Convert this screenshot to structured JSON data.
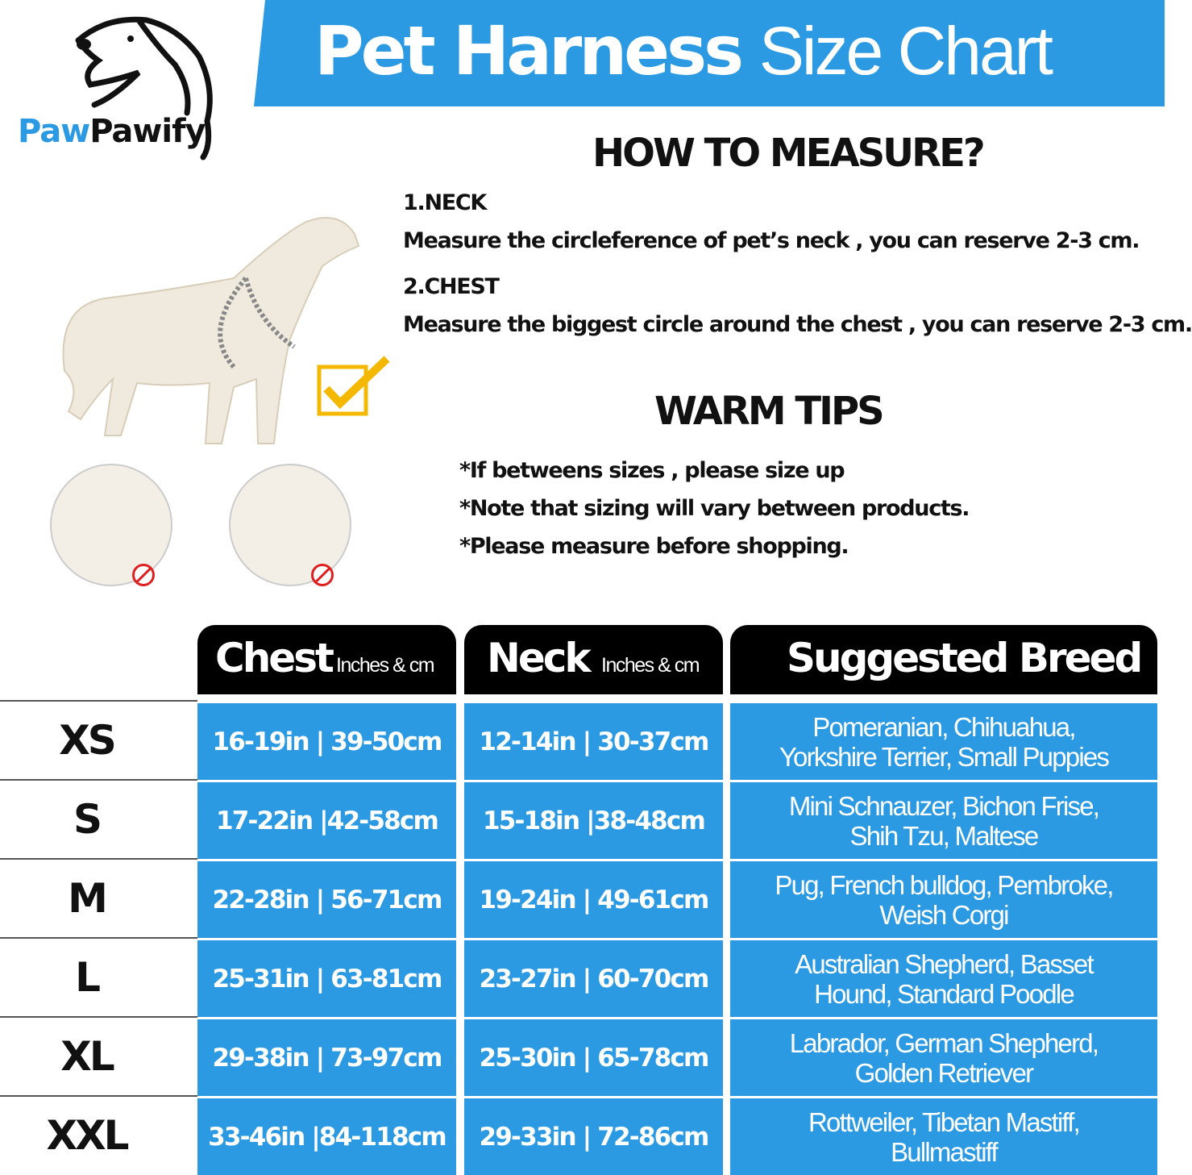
{
  "brand": {
    "part1": "Paw",
    "part2": "Pawify"
  },
  "title": {
    "bold": "Pet Harness",
    "light": "Size Chart"
  },
  "how_to_measure": {
    "heading": "HOW TO MEASURE?",
    "neck_label": "1.NECK",
    "neck_text": "Measure the circleference of pet’s neck , you can reserve 2-3 cm.",
    "chest_label": "2.CHEST",
    "chest_text": "Measure the biggest circle around the chest , you can reserve 2-3 cm."
  },
  "warm_tips": {
    "heading": "WARM TIPS",
    "tips": [
      "*If betweens sizes , please size up",
      "*Note that sizing will vary between products.",
      "*Please measure before shopping."
    ]
  },
  "colors": {
    "accent": "#2b9ae3",
    "header": "#000000",
    "check": "#f5b800",
    "no": "#e02020"
  },
  "table": {
    "headers": {
      "chest": "Chest",
      "chest_unit": "Inches & cm",
      "neck": "Neck",
      "neck_unit": "Inches & cm",
      "breed": "Suggested Breed"
    },
    "rows": [
      {
        "size": "XS",
        "chest": "16-19in | 39-50cm",
        "neck": "12-14in | 30-37cm",
        "breed1": "Pomeranian,  Chihuahua,",
        "breed2": "Yorkshire Terrier,  Small Puppies"
      },
      {
        "size": "S",
        "chest": "17-22in |42-58cm",
        "neck": "15-18in |38-48cm",
        "breed1": "Mini Schnauzer,  Bichon Frise,",
        "breed2": "Shih Tzu,  Maltese"
      },
      {
        "size": "M",
        "chest": "22-28in | 56-71cm",
        "neck": "19-24in | 49-61cm",
        "breed1": "Pug,  French bulldog,  Pembroke,",
        "breed2": "Weish Corgi"
      },
      {
        "size": "L",
        "chest": "25-31in | 63-81cm",
        "neck": "23-27in | 60-70cm",
        "breed1": "Australian Shepherd,  Basset",
        "breed2": "Hound,  Standard Poodle"
      },
      {
        "size": "XL",
        "chest": "29-38in | 73-97cm",
        "neck": "25-30in | 65-78cm",
        "breed1": "Labrador,  German Shepherd,",
        "breed2": "Golden Retriever"
      },
      {
        "size": "XXL",
        "chest": "33-46in |84-118cm",
        "neck": "29-33in | 72-86cm",
        "breed1": "Rottweiler,  Tibetan Mastiff,",
        "breed2": "Bullmastiff"
      }
    ]
  }
}
